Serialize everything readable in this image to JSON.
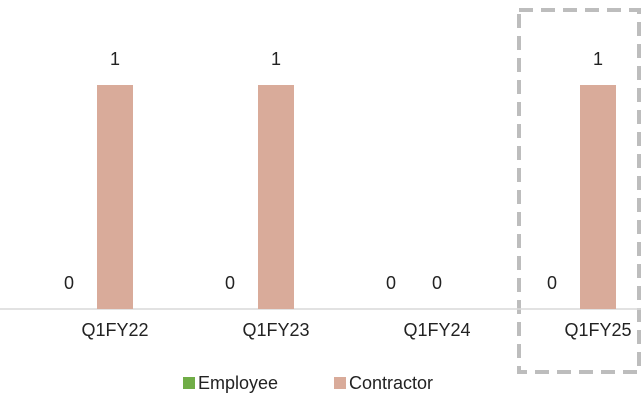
{
  "chart_data": {
    "type": "bar",
    "categories": [
      "Q1FY22",
      "Q1FY23",
      "Q1FY24",
      "Q1FY25"
    ],
    "series": [
      {
        "name": "Employee",
        "color": "#70ad47",
        "values": [
          0,
          0,
          0,
          0
        ]
      },
      {
        "name": "Contractor",
        "color": "#d9ab9a",
        "values": [
          1,
          1,
          0,
          1
        ]
      }
    ],
    "legend": "bottom"
  }
}
